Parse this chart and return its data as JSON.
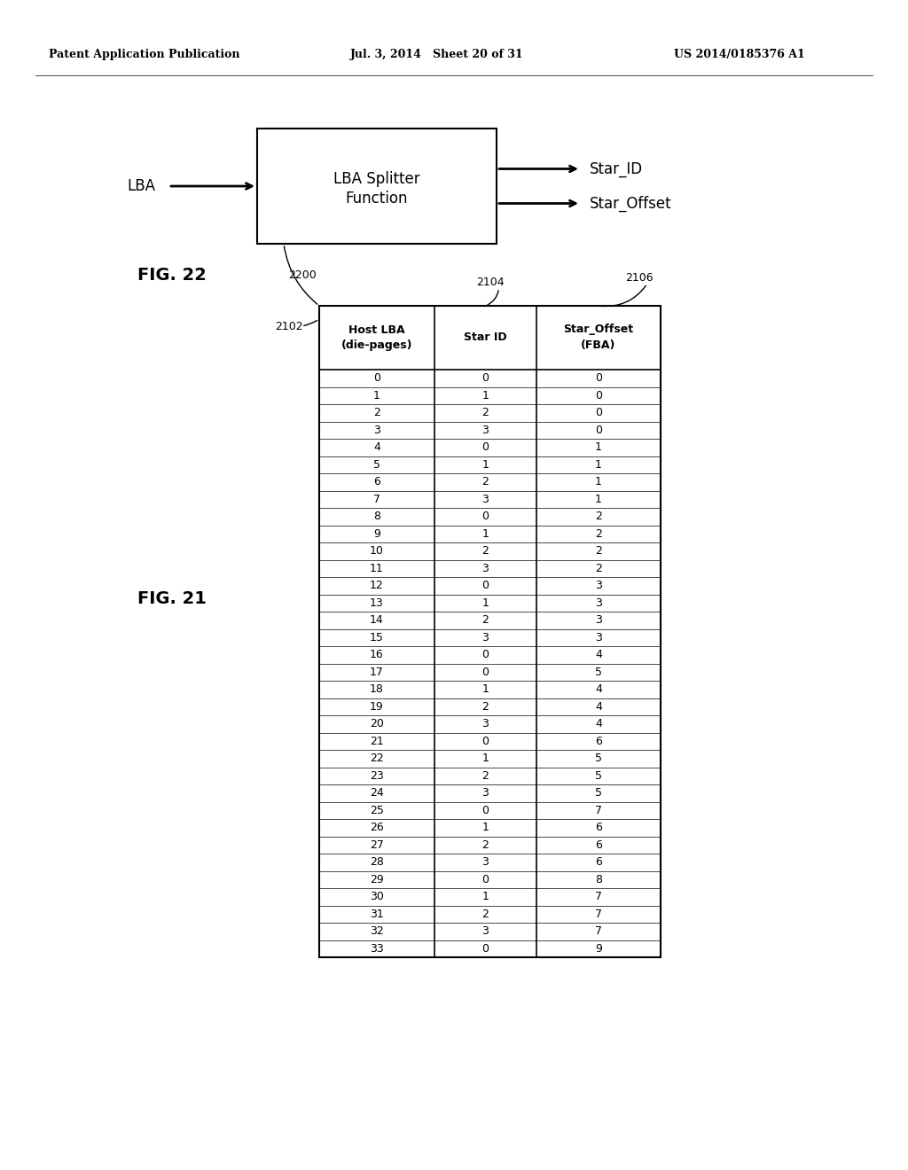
{
  "header_left": "Patent Application Publication",
  "header_mid": "Jul. 3, 2014   Sheet 20 of 31",
  "header_right": "US 2014/0185376 A1",
  "fig22_label": "FIG. 22",
  "fig21_label": "FIG. 21",
  "box_label": "LBA Splitter\nFunction",
  "lba_label": "LBA",
  "star_id_label": "Star_ID",
  "star_offset_label": "Star_Offset",
  "ref_2200": "2200",
  "ref_2102": "2102",
  "ref_2104": "2104",
  "ref_2106": "2106",
  "col_headers": [
    "Host LBA\n(die-pages)",
    "Star ID",
    "Star_Offset\n(FBA)"
  ],
  "table_data": [
    [
      0,
      0,
      0
    ],
    [
      1,
      1,
      0
    ],
    [
      2,
      2,
      0
    ],
    [
      3,
      3,
      0
    ],
    [
      4,
      0,
      1
    ],
    [
      5,
      1,
      1
    ],
    [
      6,
      2,
      1
    ],
    [
      7,
      3,
      1
    ],
    [
      8,
      0,
      2
    ],
    [
      9,
      1,
      2
    ],
    [
      10,
      2,
      2
    ],
    [
      11,
      3,
      2
    ],
    [
      12,
      0,
      3
    ],
    [
      13,
      1,
      3
    ],
    [
      14,
      2,
      3
    ],
    [
      15,
      3,
      3
    ],
    [
      16,
      0,
      4
    ],
    [
      17,
      0,
      5
    ],
    [
      18,
      1,
      4
    ],
    [
      19,
      2,
      4
    ],
    [
      20,
      3,
      4
    ],
    [
      21,
      0,
      6
    ],
    [
      22,
      1,
      5
    ],
    [
      23,
      2,
      5
    ],
    [
      24,
      3,
      5
    ],
    [
      25,
      0,
      7
    ],
    [
      26,
      1,
      6
    ],
    [
      27,
      2,
      6
    ],
    [
      28,
      3,
      6
    ],
    [
      29,
      0,
      8
    ],
    [
      30,
      1,
      7
    ],
    [
      31,
      2,
      7
    ],
    [
      32,
      3,
      7
    ],
    [
      33,
      0,
      9
    ]
  ]
}
